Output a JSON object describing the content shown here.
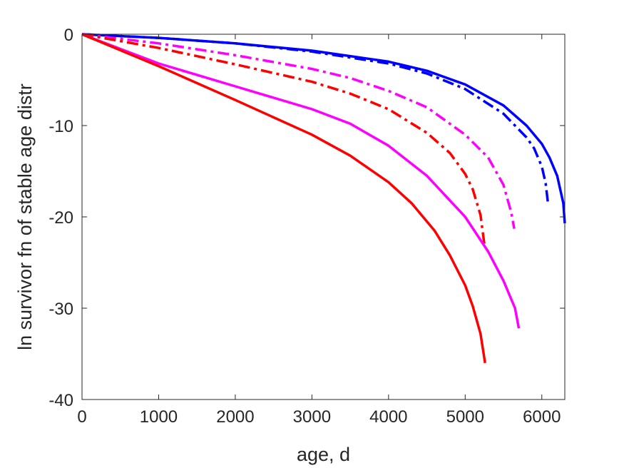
{
  "chart_data": {
    "type": "line",
    "title": "",
    "xlabel": "age, d",
    "ylabel": "ln survivor fn of stable age distr",
    "xlim": [
      0,
      6300
    ],
    "ylim": [
      -40,
      0
    ],
    "xticks": [
      0,
      1000,
      2000,
      3000,
      4000,
      5000,
      6000
    ],
    "yticks": [
      0,
      -10,
      -20,
      -30,
      -40
    ],
    "xtick_labels": [
      "0",
      "1000",
      "2000",
      "3000",
      "4000",
      "5000",
      "6000"
    ],
    "ytick_labels": [
      "0",
      "-10",
      "-20",
      "-30",
      "-40"
    ],
    "grid": false,
    "legend": "none",
    "series": [
      {
        "color": "#0000ff",
        "style": "solid",
        "x": [
          0,
          1000,
          2000,
          3000,
          4000,
          4500,
          5000,
          5500,
          5800,
          6000,
          6100,
          6200,
          6280,
          6300
        ],
        "y": [
          0,
          -0.4,
          -1.0,
          -1.8,
          -3.0,
          -4.0,
          -5.5,
          -7.8,
          -10.0,
          -12.0,
          -13.5,
          -15.5,
          -18.5,
          -20.7
        ]
      },
      {
        "color": "#0000ff",
        "style": "dashdot",
        "x": [
          0,
          1000,
          2000,
          3000,
          4000,
          4500,
          5000,
          5500,
          5800,
          5900,
          6000,
          6050,
          6080
        ],
        "y": [
          0,
          -0.4,
          -1.0,
          -1.9,
          -3.2,
          -4.3,
          -6.0,
          -8.7,
          -11.3,
          -12.5,
          -14.5,
          -16.3,
          -18.5
        ]
      },
      {
        "color": "#ff00ff",
        "style": "dashdot",
        "x": [
          0,
          1000,
          2000,
          3000,
          3500,
          4000,
          4500,
          5000,
          5300,
          5500,
          5600,
          5640
        ],
        "y": [
          0,
          -1.0,
          -2.3,
          -3.8,
          -4.8,
          -6.2,
          -8.0,
          -11.0,
          -13.5,
          -16.5,
          -19.5,
          -21.3
        ]
      },
      {
        "color": "#ff0000",
        "style": "dashdot",
        "x": [
          0,
          1000,
          2000,
          3000,
          3500,
          4000,
          4500,
          4800,
          5000,
          5100,
          5200,
          5250
        ],
        "y": [
          0,
          -1.5,
          -3.3,
          -5.2,
          -6.5,
          -8.2,
          -10.8,
          -13.0,
          -15.3,
          -17.0,
          -19.8,
          -23.0
        ]
      },
      {
        "color": "#ff00ff",
        "style": "solid",
        "x": [
          0,
          1000,
          2000,
          3000,
          3500,
          4000,
          4500,
          5000,
          5300,
          5500,
          5650,
          5700
        ],
        "y": [
          0,
          -3.2,
          -5.7,
          -8.2,
          -9.8,
          -12.2,
          -15.5,
          -20.0,
          -23.8,
          -27.0,
          -30.0,
          -32.2
        ]
      },
      {
        "color": "#ff0000",
        "style": "solid",
        "x": [
          0,
          1000,
          2000,
          3000,
          3500,
          4000,
          4300,
          4600,
          4800,
          5000,
          5100,
          5200,
          5260
        ],
        "y": [
          0,
          -3.5,
          -7.2,
          -11.0,
          -13.3,
          -16.2,
          -18.5,
          -21.5,
          -24.2,
          -27.5,
          -29.8,
          -32.8,
          -36.0
        ]
      }
    ]
  }
}
